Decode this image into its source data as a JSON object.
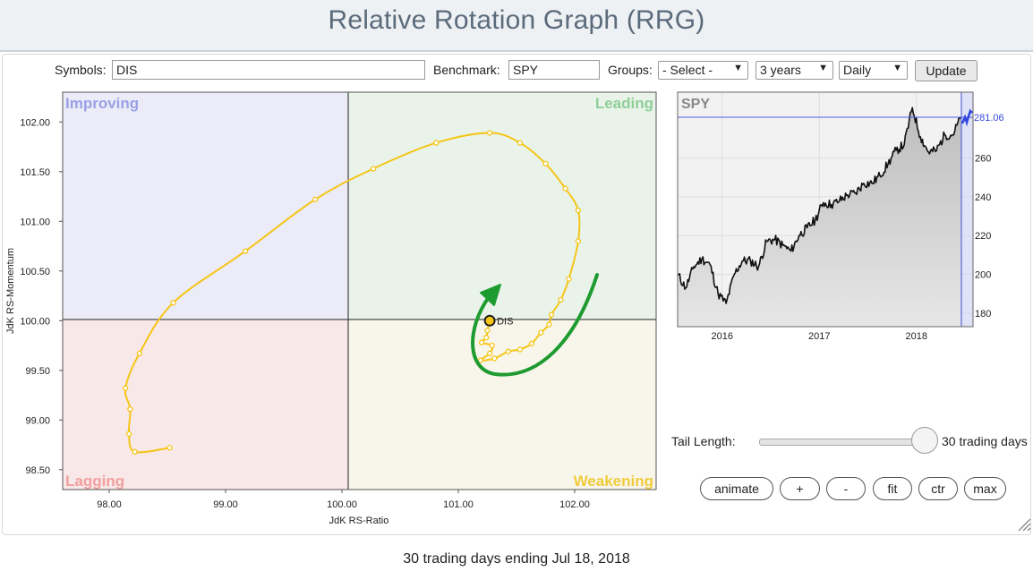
{
  "header": {
    "title": "Relative Rotation Graph (RRG)"
  },
  "controls": {
    "symbols_label": "Symbols:",
    "symbols_value": "DIS",
    "benchmark_label": "Benchmark:",
    "benchmark_value": "SPY",
    "groups_label": "Groups:",
    "groups_selected": "- Select -",
    "period_selected": "3 years",
    "frequency_selected": "Daily",
    "update_label": "Update"
  },
  "rrg": {
    "quadrants": {
      "improving": "Improving",
      "leading": "Leading",
      "lagging": "Lagging",
      "weakening": "Weakening"
    },
    "xlabel": "JdK RS-Ratio",
    "ylabel": "JdK RS-Momentum",
    "x_ticks": [
      "98.00",
      "99.00",
      "100.00",
      "101.00",
      "102.00"
    ],
    "y_ticks": [
      "102.00",
      "101.50",
      "101.00",
      "100.50",
      "100.00",
      "99.50",
      "99.00",
      "98.50"
    ],
    "colors": {
      "tail": "#f5c518",
      "arrow": "#1e9b30",
      "improving": "#ececf8",
      "leading": "#e9f3ea",
      "lagging": "#f9e8e8",
      "weakening": "#f8f6ea"
    }
  },
  "chart_data": [
    {
      "type": "scatter",
      "title": "",
      "xlabel": "JdK RS-Ratio",
      "ylabel": "JdK RS-Momentum",
      "xlim": [
        97.6,
        102.7
      ],
      "ylim": [
        98.3,
        102.3
      ],
      "series": [
        {
          "name": "DIS",
          "points": [
            [
              98.52,
              98.72
            ],
            [
              98.22,
              98.68
            ],
            [
              98.17,
              98.86
            ],
            [
              98.18,
              99.11
            ],
            [
              98.14,
              99.32
            ],
            [
              98.26,
              99.67
            ],
            [
              98.55,
              100.18
            ],
            [
              99.17,
              100.7
            ],
            [
              99.77,
              101.22
            ],
            [
              100.27,
              101.53
            ],
            [
              100.81,
              101.79
            ],
            [
              101.27,
              101.89
            ],
            [
              101.53,
              101.79
            ],
            [
              101.75,
              101.58
            ],
            [
              101.92,
              101.33
            ],
            [
              102.03,
              101.11
            ],
            [
              102.03,
              100.8
            ],
            [
              101.95,
              100.42
            ],
            [
              101.88,
              100.21
            ],
            [
              101.8,
              100.06
            ],
            [
              101.78,
              99.96
            ],
            [
              101.71,
              99.88
            ],
            [
              101.63,
              99.77
            ],
            [
              101.53,
              99.71
            ],
            [
              101.43,
              99.69
            ],
            [
              101.31,
              99.62
            ],
            [
              101.19,
              99.6
            ],
            [
              101.27,
              99.67
            ],
            [
              101.29,
              99.75
            ],
            [
              101.2,
              99.78
            ],
            [
              101.24,
              99.83
            ],
            [
              101.25,
              99.9
            ],
            [
              101.27,
              100.0
            ]
          ]
        }
      ],
      "annotations": [
        "DIS"
      ],
      "quadrants": [
        "Improving",
        "Leading",
        "Lagging",
        "Weakening"
      ]
    },
    {
      "type": "line",
      "title": "SPY",
      "x_ticks": [
        "2016",
        "2017",
        "2018"
      ],
      "y_ticks": [
        180,
        200,
        220,
        240,
        260
      ],
      "ylim": [
        173,
        294
      ],
      "last_value": "281.06",
      "series": [
        {
          "name": "SPY",
          "points": [
            [
              "2015-08",
              200
            ],
            [
              "2015-09",
              193
            ],
            [
              "2015-10",
              204
            ],
            [
              "2015-11",
              208
            ],
            [
              "2015-12",
              205
            ],
            [
              "2016-01",
              190
            ],
            [
              "2016-02",
              185
            ],
            [
              "2016-03",
              200
            ],
            [
              "2016-04",
              207
            ],
            [
              "2016-05",
              207
            ],
            [
              "2016-06",
              204
            ],
            [
              "2016-07",
              217
            ],
            [
              "2016-08",
              218
            ],
            [
              "2016-09",
              215
            ],
            [
              "2016-10",
              212
            ],
            [
              "2016-11",
              220
            ],
            [
              "2016-12",
              224
            ],
            [
              "2017-01",
              228
            ],
            [
              "2017-02",
              237
            ],
            [
              "2017-03",
              236
            ],
            [
              "2017-04",
              238
            ],
            [
              "2017-05",
              241
            ],
            [
              "2017-06",
              242
            ],
            [
              "2017-07",
              247
            ],
            [
              "2017-08",
              247
            ],
            [
              "2017-09",
              251
            ],
            [
              "2017-10",
              257
            ],
            [
              "2017-11",
              264
            ],
            [
              "2017-12",
              267
            ],
            [
              "2018-01",
              286
            ],
            [
              "2018-02",
              271
            ],
            [
              "2018-03",
              263
            ],
            [
              "2018-04",
              264
            ],
            [
              "2018-05",
              272
            ],
            [
              "2018-06",
              272
            ],
            [
              "2018-07",
              281
            ]
          ]
        }
      ]
    }
  ],
  "tail": {
    "label": "Tail Length:",
    "value": "30 trading days",
    "level": 1.0
  },
  "buttons": {
    "animate": "animate",
    "plus": "+",
    "minus": "-",
    "fit": "fit",
    "ctr": "ctr",
    "max": "max"
  },
  "footer": {
    "caption": "30 trading days ending Jul 18, 2018"
  }
}
